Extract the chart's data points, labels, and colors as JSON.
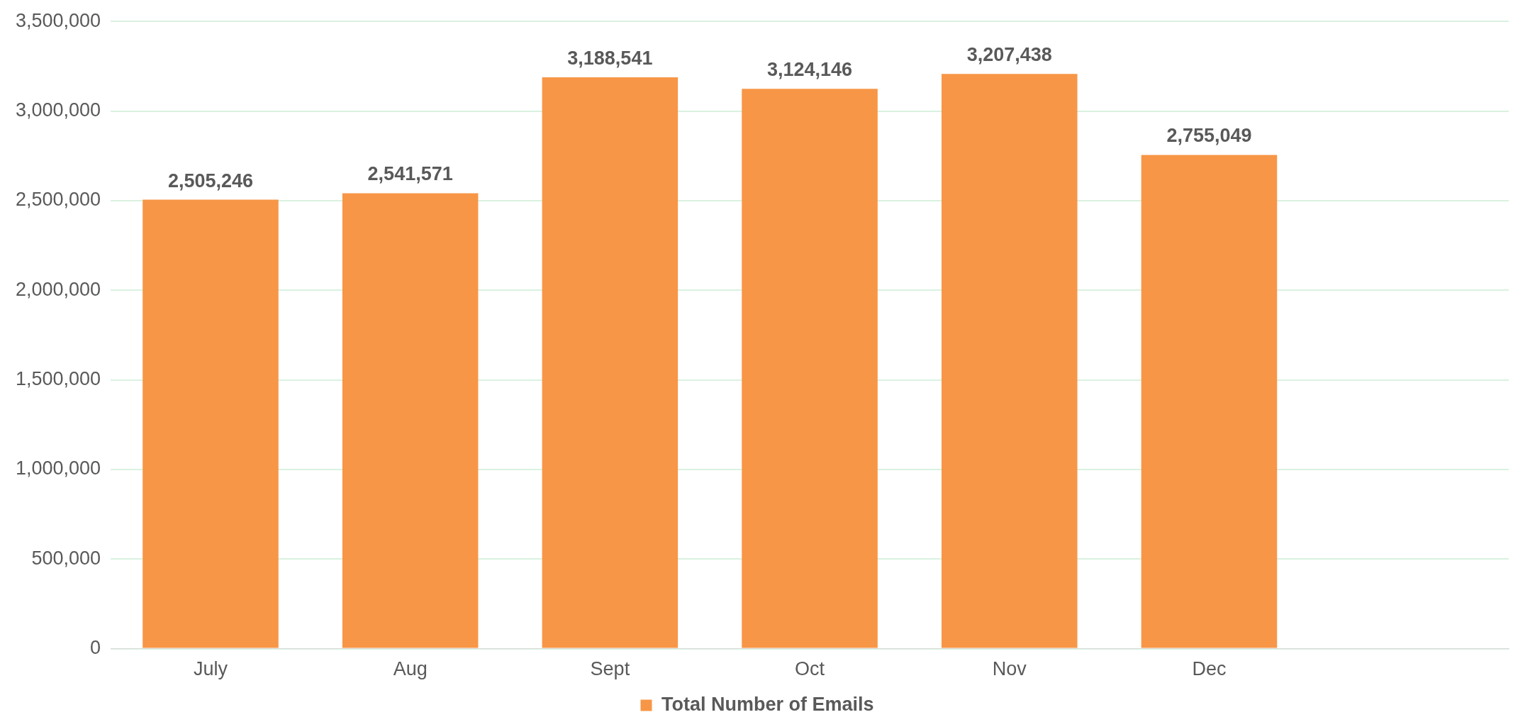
{
  "chart_data": {
    "type": "bar",
    "categories": [
      "July",
      "Aug",
      "Sept",
      "Oct",
      "Nov",
      "Dec",
      null
    ],
    "series": [
      {
        "name": "Total Number of Emails",
        "color": "#f79646",
        "values": [
          2505246,
          2541571,
          3188541,
          3124146,
          3207438,
          2755049,
          null
        ],
        "value_labels": [
          "2,505,246",
          "2,541,571",
          "3,188,541",
          "3,124,146",
          "3,207,438",
          "2,755,049",
          null
        ]
      }
    ],
    "ylim": [
      0,
      3500000
    ],
    "yticks": [
      {
        "value": 0,
        "label": "0"
      },
      {
        "value": 500000,
        "label": "500,000"
      },
      {
        "value": 1000000,
        "label": "1,000,000"
      },
      {
        "value": 1500000,
        "label": "1,500,000"
      },
      {
        "value": 2000000,
        "label": "2,000,000"
      },
      {
        "value": 2500000,
        "label": "2,500,000"
      },
      {
        "value": 3000000,
        "label": "3,000,000"
      },
      {
        "value": 3500000,
        "label": "3,500,000"
      }
    ],
    "grid": "y",
    "legend": "bottom"
  }
}
